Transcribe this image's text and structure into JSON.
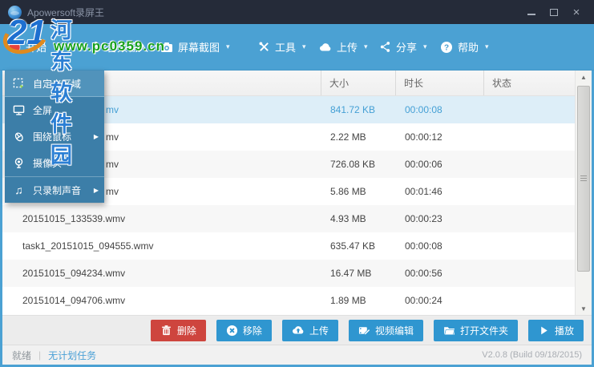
{
  "window": {
    "title": "Apowersoft录屏王"
  },
  "window_controls": {
    "minimize": "─",
    "maximize": "□",
    "close": "×"
  },
  "watermark": {
    "logo_text": "21",
    "site_name": "河东软件园",
    "site_url": "www.pc0359.cn"
  },
  "colors": {
    "accent_blue": "#4ba1d3",
    "button_blue": "#2f96d0",
    "danger_red": "#ce453e",
    "selected_row": "#ddeef8",
    "titlebar": "#252b39",
    "menu_blue": "#3c7ea8",
    "menu_highlight": "#5193bb"
  },
  "toolbar": {
    "items": [
      {
        "label": "开始",
        "icon": "record",
        "caret": false
      },
      {
        "label": "音频输入",
        "icon": "microphone",
        "caret": true
      },
      {
        "label": "屏幕截图",
        "icon": "camera",
        "caret": true
      },
      {
        "label": "工具",
        "icon": "tools",
        "caret": true
      },
      {
        "label": "上传",
        "icon": "cloud-upload",
        "caret": true
      },
      {
        "label": "分享",
        "icon": "share",
        "caret": true
      },
      {
        "label": "帮助",
        "icon": "help",
        "caret": true
      }
    ]
  },
  "record_menu": {
    "items": [
      {
        "label": "自定义区域",
        "icon": "custom-region",
        "highlighted": true,
        "submenu": false,
        "sep_below": true
      },
      {
        "label": "全屏",
        "icon": "fullscreen",
        "highlighted": false,
        "submenu": false
      },
      {
        "label": "围绕鼠标",
        "icon": "around-mouse",
        "highlighted": false,
        "submenu": true
      },
      {
        "label": "摄像头",
        "icon": "webcam",
        "highlighted": false,
        "submenu": false
      },
      {
        "label": "只录制声音",
        "icon": "audio-only",
        "highlighted": false,
        "submenu": true,
        "sep_above": true
      }
    ]
  },
  "file_table": {
    "columns": [
      {
        "label": "",
        "key": "name"
      },
      {
        "label": "大小",
        "key": "size"
      },
      {
        "label": "时长",
        "key": "duration"
      },
      {
        "label": "状态",
        "key": "status"
      }
    ],
    "rows": [
      {
        "name": "mv",
        "size": "841.72 KB",
        "duration": "00:00:08",
        "status": "",
        "selected": true,
        "partial": true
      },
      {
        "name": "mv",
        "size": "2.22 MB",
        "duration": "00:00:12",
        "status": "",
        "selected": false,
        "partial": true
      },
      {
        "name": "mv",
        "size": "726.08 KB",
        "duration": "00:00:06",
        "status": "",
        "selected": false,
        "partial": true
      },
      {
        "name": "mv",
        "size": "5.86 MB",
        "duration": "00:01:46",
        "status": "",
        "selected": false,
        "partial": true
      },
      {
        "name": "20151015_133539.wmv",
        "size": "4.93 MB",
        "duration": "00:00:23",
        "status": "",
        "selected": false,
        "partial": false
      },
      {
        "name": "task1_20151015_094555.wmv",
        "size": "635.47 KB",
        "duration": "00:00:08",
        "status": "",
        "selected": false,
        "partial": false
      },
      {
        "name": "20151015_094234.wmv",
        "size": "16.47 MB",
        "duration": "00:00:56",
        "status": "",
        "selected": false,
        "partial": false
      },
      {
        "name": "20151014_094706.wmv",
        "size": "1.89 MB",
        "duration": "00:00:24",
        "status": "",
        "selected": false,
        "partial": false
      }
    ]
  },
  "scrollbar": {
    "up_arrow": "▲",
    "down_arrow": "▼"
  },
  "action_buttons": [
    {
      "label": "删除",
      "icon": "trash",
      "style": "danger"
    },
    {
      "label": "移除",
      "icon": "remove-circle",
      "style": "primary"
    },
    {
      "label": "上传",
      "icon": "cloud-upload",
      "style": "primary"
    },
    {
      "label": "视频编辑",
      "icon": "video-edit",
      "style": "primary"
    },
    {
      "label": "打开文件夹",
      "icon": "open-folder",
      "style": "primary"
    },
    {
      "label": "播放",
      "icon": "play",
      "style": "primary"
    }
  ],
  "statusbar": {
    "state": "就绪",
    "separator": "|",
    "task": "无计划任务",
    "version": "V2.0.8 (Build 09/18/2015)"
  }
}
